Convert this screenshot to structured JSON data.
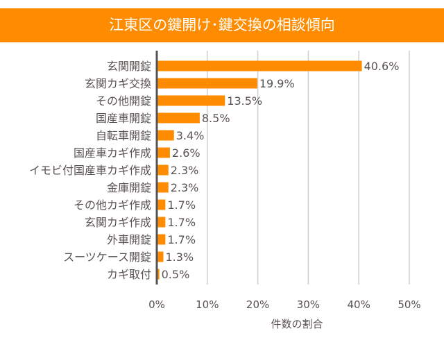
{
  "chart_data": {
    "type": "bar",
    "orientation": "horizontal",
    "title": "江東区の鍵開け･鍵交換の相談傾向",
    "xlabel": "件数の割合",
    "ylabel": "",
    "categories": [
      "玄関開錠",
      "玄関カギ交換",
      "その他開錠",
      "国産車開錠",
      "自転車開錠",
      "国産車カギ作成",
      "イモビ付国産車カギ作成",
      "金庫開錠",
      "その他カギ作成",
      "玄関カギ作成",
      "外車開錠",
      "スーツケース開錠",
      "カギ取付"
    ],
    "values": [
      40.6,
      19.9,
      13.5,
      8.5,
      3.4,
      2.6,
      2.3,
      2.3,
      1.7,
      1.7,
      1.7,
      1.3,
      0.5
    ],
    "data_labels": [
      "40.6%",
      "19.9%",
      "13.5%",
      "8.5%",
      "3.4%",
      "2.6%",
      "2.3%",
      "2.3%",
      "1.7%",
      "1.7%",
      "1.7%",
      "1.3%",
      "0.5%"
    ],
    "xlim": [
      0,
      50
    ],
    "x_ticks": [
      "0%",
      "10%",
      "20%",
      "30%",
      "40%",
      "50%"
    ],
    "grid": true,
    "bar_color": "#FF8C00",
    "title_bg_color": "#FF8C00"
  }
}
